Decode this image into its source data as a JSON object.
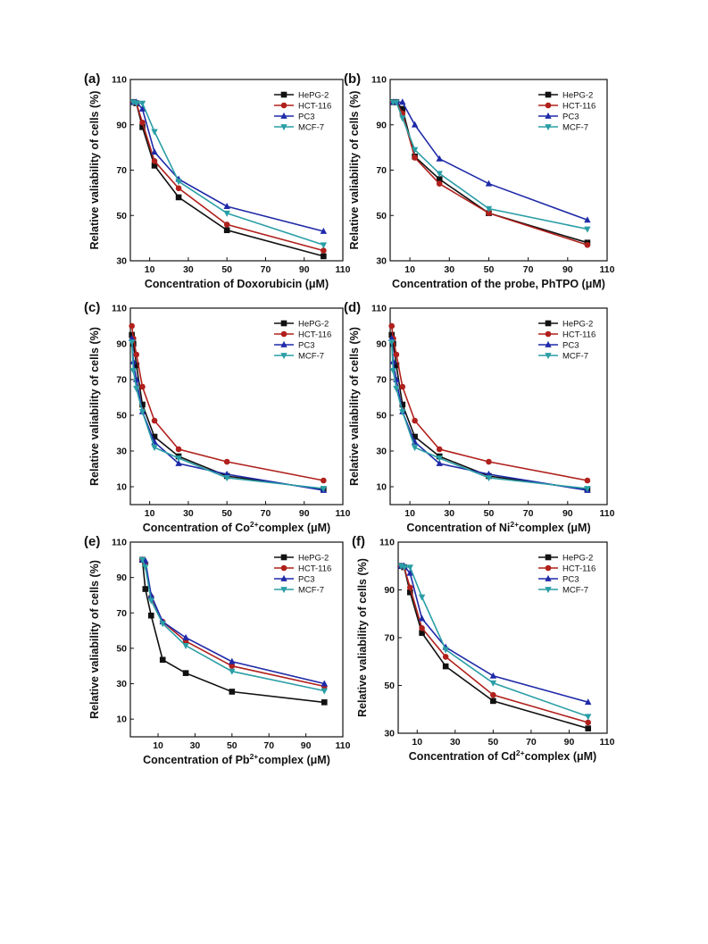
{
  "chart_data": [
    {
      "type": "line",
      "panel_label": "(a)",
      "xlabel": "Concentration of Doxorubicin (μM)",
      "xlabel_parts": [
        [
          "Concentration of Doxorubicin ",
          ""
        ],
        [
          "(μM)",
          ""
        ]
      ],
      "ylabel": "Relative valiability of cells (%)",
      "xlim": [
        0,
        110
      ],
      "ylim": [
        30,
        110
      ],
      "xticks": [
        10,
        30,
        50,
        70,
        90,
        110
      ],
      "yticks": [
        30,
        50,
        70,
        90,
        110
      ],
      "legend_position": "top-right",
      "series": [
        {
          "name": "HePG-2",
          "color": "#111111",
          "marker": "square",
          "x": [
            1.5,
            3.125,
            6.25,
            12.5,
            25,
            50,
            100
          ],
          "y": [
            100,
            99.5,
            89,
            72,
            58,
            43.5,
            32
          ]
        },
        {
          "name": "HCT-116",
          "color": "#b0201c",
          "marker": "circle",
          "x": [
            1.5,
            3.125,
            6.25,
            12.5,
            25,
            50,
            100
          ],
          "y": [
            100,
            99.5,
            91,
            74,
            62,
            46,
            34.5
          ]
        },
        {
          "name": "PC3",
          "color": "#1f2aa8",
          "marker": "triangle-up",
          "x": [
            1.5,
            3.125,
            6.25,
            12.5,
            25,
            50,
            100
          ],
          "y": [
            100,
            100,
            97,
            78,
            66,
            54,
            43
          ]
        },
        {
          "name": "MCF-7",
          "color": "#2a9ea6",
          "marker": "triangle-down",
          "x": [
            1.5,
            3.125,
            6.25,
            12.5,
            25,
            50,
            100
          ],
          "y": [
            100,
            99.5,
            99.5,
            87,
            65,
            51,
            37
          ]
        }
      ]
    },
    {
      "type": "line",
      "panel_label": "(b)",
      "xlabel": "Concentration of the probe, PhTPO (μM)",
      "xlabel_parts": [
        [
          "Concentration of the probe, PhTPO ",
          ""
        ],
        [
          "(μM)",
          ""
        ]
      ],
      "ylabel": "Relative valiability of cells (%)",
      "xlim": [
        0,
        110
      ],
      "ylim": [
        30,
        110
      ],
      "xticks": [
        10,
        30,
        50,
        70,
        90,
        110
      ],
      "yticks": [
        30,
        50,
        70,
        90,
        110
      ],
      "legend_position": "top-right",
      "series": [
        {
          "name": "HePG-2",
          "color": "#111111",
          "marker": "square",
          "x": [
            1.5,
            3.125,
            6.25,
            12.5,
            25,
            50,
            100
          ],
          "y": [
            100,
            100,
            97,
            76,
            66,
            51,
            38
          ]
        },
        {
          "name": "HCT-116",
          "color": "#b0201c",
          "marker": "circle",
          "x": [
            1.5,
            3.125,
            6.25,
            12.5,
            25,
            50,
            100
          ],
          "y": [
            100,
            100,
            95,
            75.5,
            64,
            51,
            37
          ]
        },
        {
          "name": "PC3",
          "color": "#1f2aa8",
          "marker": "triangle-up",
          "x": [
            1.5,
            3.125,
            6.25,
            12.5,
            25,
            50,
            100
          ],
          "y": [
            100,
            100,
            100,
            90,
            75,
            64,
            48
          ]
        },
        {
          "name": "MCF-7",
          "color": "#2a9ea6",
          "marker": "triangle-down",
          "x": [
            1.5,
            3.125,
            6.25,
            12.5,
            25,
            50,
            100
          ],
          "y": [
            100,
            100,
            93,
            79,
            68.5,
            53,
            44
          ]
        }
      ]
    },
    {
      "type": "line",
      "panel_label": "(c)",
      "xlabel": "Concentration of Co2+complex (μM)",
      "xlabel_parts": [
        [
          "Concentration of Co",
          ""
        ],
        [
          "2+",
          "sup"
        ],
        [
          "complex ",
          ""
        ],
        [
          "(μM)",
          ""
        ]
      ],
      "ylabel": "Relative valiability of cells (%)",
      "xlim": [
        0,
        110
      ],
      "ylim": [
        0,
        110
      ],
      "xticks": [
        10,
        30,
        50,
        70,
        90,
        110
      ],
      "yticks": [
        10,
        30,
        50,
        70,
        90,
        110
      ],
      "legend_position": "top-right",
      "series": [
        {
          "name": "HePG-2",
          "color": "#111111",
          "marker": "square",
          "x": [
            0.78,
            1.56,
            3.125,
            6.25,
            12.5,
            25,
            50,
            100
          ],
          "y": [
            95,
            90,
            78,
            56,
            38,
            27,
            16,
            8.5
          ]
        },
        {
          "name": "HCT-116",
          "color": "#b0201c",
          "marker": "circle",
          "x": [
            0.78,
            1.56,
            3.125,
            6.25,
            12.5,
            25,
            50,
            100
          ],
          "y": [
            100,
            93,
            84,
            66,
            47,
            31,
            24,
            13.5
          ]
        },
        {
          "name": "PC3",
          "color": "#1f2aa8",
          "marker": "triangle-up",
          "x": [
            0.78,
            1.56,
            3.125,
            6.25,
            12.5,
            25,
            50,
            100
          ],
          "y": [
            93,
            80,
            70,
            52,
            35,
            23,
            17,
            8
          ]
        },
        {
          "name": "MCF-7",
          "color": "#2a9ea6",
          "marker": "triangle-down",
          "x": [
            0.78,
            1.56,
            3.125,
            6.25,
            12.5,
            25,
            50,
            100
          ],
          "y": [
            91,
            75,
            65,
            52,
            32,
            26,
            15,
            9
          ]
        }
      ]
    },
    {
      "type": "line",
      "panel_label": "(d)",
      "xlabel": "Concentration of Ni2+complex (μM)",
      "xlabel_parts": [
        [
          "Concentration of Ni",
          ""
        ],
        [
          "2+",
          "sup"
        ],
        [
          "complex ",
          ""
        ],
        [
          "(μM)",
          ""
        ]
      ],
      "ylabel": "Relative valiability of cells (%)",
      "xlim": [
        0,
        110
      ],
      "ylim": [
        0,
        110
      ],
      "xticks": [
        10,
        30,
        50,
        70,
        90,
        110
      ],
      "yticks": [
        10,
        30,
        50,
        70,
        90,
        110
      ],
      "legend_position": "top-right",
      "series": [
        {
          "name": "HePG-2",
          "color": "#111111",
          "marker": "square",
          "x": [
            0.78,
            1.56,
            3.125,
            6.25,
            12.5,
            25,
            50,
            100
          ],
          "y": [
            95,
            90,
            78,
            56,
            38,
            27,
            16,
            8.5
          ]
        },
        {
          "name": "HCT-116",
          "color": "#b0201c",
          "marker": "circle",
          "x": [
            0.78,
            1.56,
            3.125,
            6.25,
            12.5,
            25,
            50,
            100
          ],
          "y": [
            100,
            93,
            84,
            66,
            47,
            31,
            24,
            13.5
          ]
        },
        {
          "name": "PC3",
          "color": "#1f2aa8",
          "marker": "triangle-up",
          "x": [
            0.78,
            1.56,
            3.125,
            6.25,
            12.5,
            25,
            50,
            100
          ],
          "y": [
            93,
            80,
            70,
            52,
            35,
            23,
            17,
            8
          ]
        },
        {
          "name": "MCF-7",
          "color": "#2a9ea6",
          "marker": "triangle-down",
          "x": [
            0.78,
            1.56,
            3.125,
            6.25,
            12.5,
            25,
            50,
            100
          ],
          "y": [
            91,
            75,
            65,
            52,
            32,
            26,
            15,
            9
          ]
        }
      ]
    },
    {
      "type": "line",
      "panel_label": "(e)",
      "xlabel": "Concentration of Pb2+complex (μM)",
      "xlabel_parts": [
        [
          "Concentration of Pb",
          ""
        ],
        [
          "2+",
          "sup"
        ],
        [
          "complex ",
          ""
        ],
        [
          "(μM)",
          ""
        ]
      ],
      "ylabel": "Relative valiability of cells (%)",
      "xlim": [
        -5,
        110
      ],
      "ylim": [
        0,
        110
      ],
      "xticks": [
        10,
        30,
        50,
        70,
        90,
        110
      ],
      "yticks": [
        10,
        30,
        50,
        70,
        90,
        110
      ],
      "legend_position": "top-right",
      "series": [
        {
          "name": "HePG-2",
          "color": "#111111",
          "marker": "square",
          "x": [
            1.5,
            3.125,
            6.25,
            12.5,
            25,
            50,
            100
          ],
          "y": [
            100,
            83.5,
            68.5,
            43.5,
            36,
            25.5,
            19.5
          ]
        },
        {
          "name": "HCT-116",
          "color": "#b0201c",
          "marker": "circle",
          "x": [
            1.5,
            3.125,
            6.25,
            12.5,
            25,
            50,
            100
          ],
          "y": [
            100,
            98,
            79,
            65,
            54,
            40,
            28.5
          ]
        },
        {
          "name": "PC3",
          "color": "#1f2aa8",
          "marker": "triangle-up",
          "x": [
            1.5,
            3.125,
            6.25,
            12.5,
            25,
            50,
            100
          ],
          "y": [
            100,
            99.5,
            80,
            65,
            56,
            42.5,
            30
          ]
        },
        {
          "name": "MCF-7",
          "color": "#2a9ea6",
          "marker": "triangle-down",
          "x": [
            1.5,
            3.125,
            6.25,
            12.5,
            25,
            50,
            100
          ],
          "y": [
            100,
            96,
            77,
            64,
            51.5,
            37,
            26
          ]
        }
      ]
    },
    {
      "type": "line",
      "panel_label": "(f)",
      "xlabel": "Concentration of Cd2+complex (μM)",
      "xlabel_parts": [
        [
          "Concentration of Cd",
          ""
        ],
        [
          "2+",
          "sup"
        ],
        [
          "complex ",
          ""
        ],
        [
          "(μM)",
          ""
        ]
      ],
      "ylabel": "Relative valiability of cells (%)",
      "xlim": [
        0,
        110
      ],
      "ylim": [
        30,
        110
      ],
      "xticks": [
        10,
        30,
        50,
        70,
        90,
        110
      ],
      "yticks": [
        30,
        50,
        70,
        90,
        110
      ],
      "legend_position": "top-right",
      "series": [
        {
          "name": "HePG-2",
          "color": "#111111",
          "marker": "square",
          "x": [
            1.5,
            3.125,
            6.25,
            12.5,
            25,
            50,
            100
          ],
          "y": [
            100,
            99.5,
            89,
            72,
            58,
            43.5,
            32
          ]
        },
        {
          "name": "HCT-116",
          "color": "#b0201c",
          "marker": "circle",
          "x": [
            1.5,
            3.125,
            6.25,
            12.5,
            25,
            50,
            100
          ],
          "y": [
            100,
            99.5,
            91,
            74,
            62,
            46,
            34.5
          ]
        },
        {
          "name": "PC3",
          "color": "#1f2aa8",
          "marker": "triangle-up",
          "x": [
            1.5,
            3.125,
            6.25,
            12.5,
            25,
            50,
            100
          ],
          "y": [
            100,
            100,
            97,
            78,
            66,
            54,
            43
          ]
        },
        {
          "name": "MCF-7",
          "color": "#2a9ea6",
          "marker": "triangle-down",
          "x": [
            1.5,
            3.125,
            6.25,
            12.5,
            25,
            50,
            100
          ],
          "y": [
            100,
            99.5,
            99.5,
            87,
            65,
            51,
            37
          ]
        }
      ]
    }
  ]
}
